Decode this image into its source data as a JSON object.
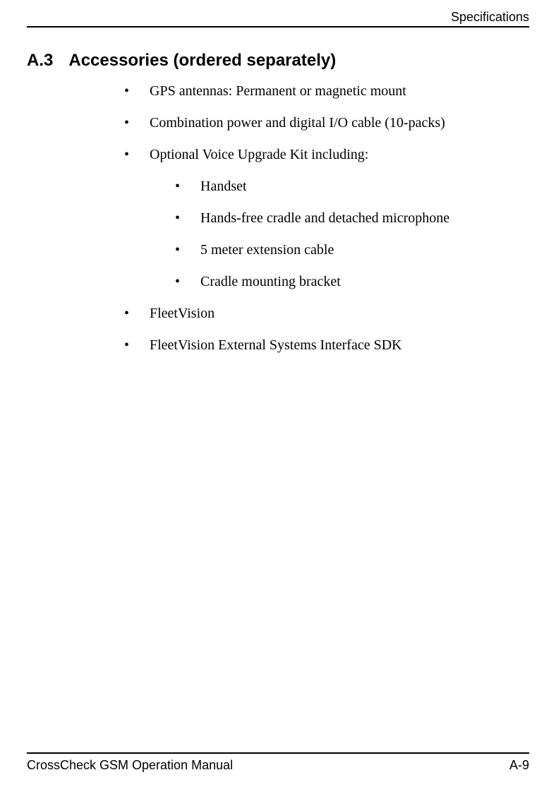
{
  "header": {
    "chapter": "Specifications"
  },
  "section": {
    "number": "A.3",
    "title": "Accessories (ordered separately)"
  },
  "items": [
    {
      "text": "GPS antennas: Permanent or magnetic mount"
    },
    {
      "text": "Combination power and digital I/O cable (10-packs)"
    },
    {
      "text": "Optional Voice Upgrade Kit including:",
      "sub": [
        "Handset",
        "Hands-free cradle and detached microphone",
        "5 meter extension cable",
        "Cradle mounting bracket"
      ]
    },
    {
      "text": "FleetVision"
    },
    {
      "text": "FleetVision External Systems Interface SDK"
    }
  ],
  "footer": {
    "manual": "CrossCheck GSM Operation Manual",
    "page": "A-9"
  },
  "style": {
    "page_bg": "#ffffff",
    "text_color": "#000000",
    "rule_color": "#000000",
    "body_font": "Times New Roman",
    "heading_font": "Arial",
    "heading_fontsize_pt": 18,
    "body_fontsize_pt": 15,
    "header_fontsize_pt": 13,
    "footer_fontsize_pt": 13
  }
}
